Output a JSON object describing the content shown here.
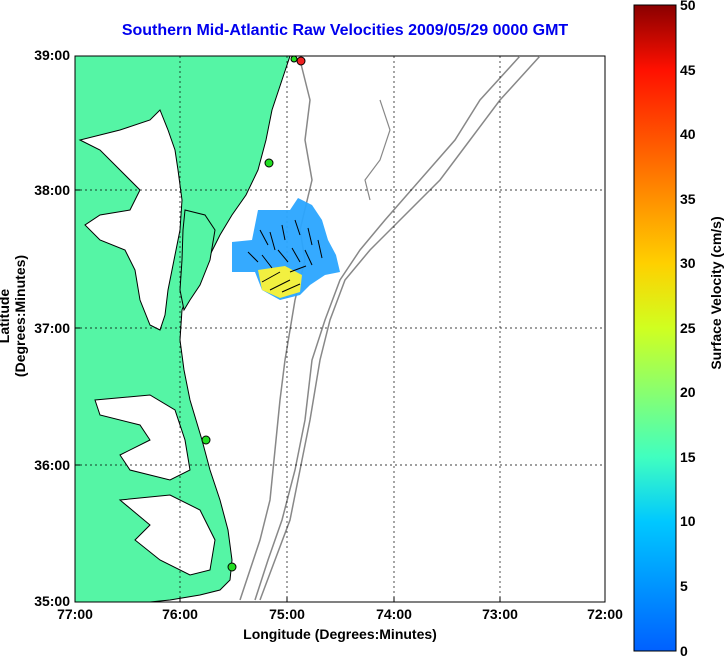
{
  "title": "Southern Mid-Atlantic Raw Velocities 2009/05/29 0000 GMT",
  "xlabel": "Longitude (Degrees:Minutes)",
  "ylabel": "Latitude (Degrees:Minutes)",
  "x_ticks": [
    "77:00",
    "76:00",
    "75:00",
    "74:00",
    "73:00",
    "72:00"
  ],
  "y_ticks": [
    "39:00",
    "38:00",
    "37:00",
    "36:00",
    "35:00"
  ],
  "colorbar": {
    "label": "Surface Velocity (cm/s)",
    "ticks": [
      "50",
      "45",
      "40",
      "35",
      "30",
      "25",
      "20",
      "15",
      "10",
      "5",
      "0"
    ],
    "min": 0,
    "max": 50
  },
  "colors": {
    "land": "#55f5a5",
    "coast": "#000000",
    "bathymetry": "#888888",
    "grid": "#000000",
    "title": "#0000ee",
    "station": "#22dd22",
    "station_alt": "#ee2222"
  }
}
